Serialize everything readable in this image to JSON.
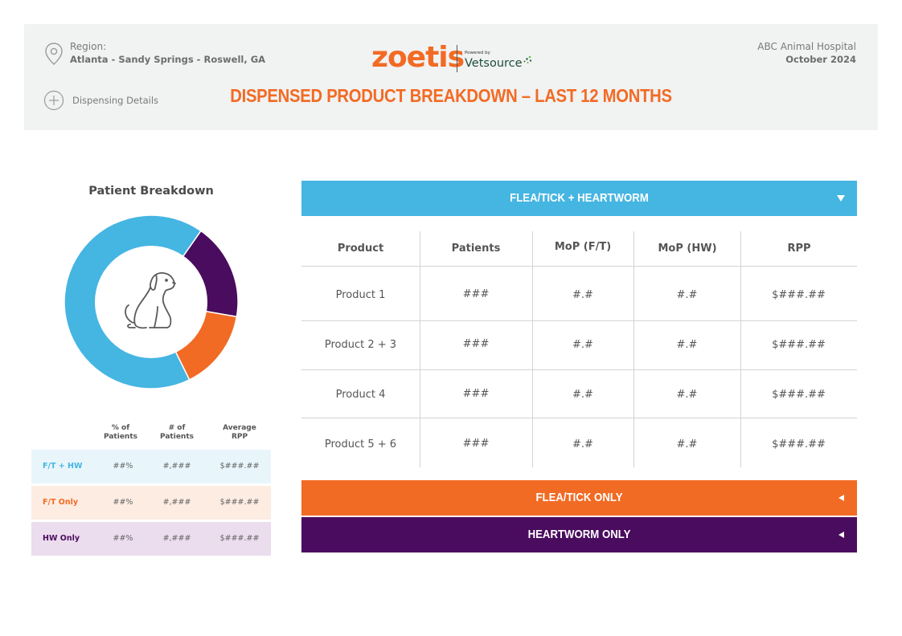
{
  "header": {
    "region_label": "Region:",
    "region_value": "Atlanta - Sandy Springs - Roswell, GA",
    "details_link": "Dispensing Details",
    "logo_brand": "zoetis",
    "logo_powered": "Powered by",
    "logo_partner": "Vetsource",
    "title": "DISPENSED PRODUCT BREAKDOWN – LAST 12 MONTHS",
    "clinic": "ABC Animal Hospital",
    "month": "October 2024"
  },
  "icons": {
    "region": "location-pin-icon",
    "details": "plus-circle-icon",
    "donut_center": "dog-icon",
    "expanded": "triangle-down-icon",
    "collapsed": "triangle-left-icon"
  },
  "colors": {
    "blue": "#45b5e2",
    "orange": "#f26b24",
    "purple": "#4a0c5e"
  },
  "patient_breakdown": {
    "title": "Patient Breakdown",
    "headers": [
      "% of\nPatients",
      "# of\nPatients",
      "Average\nRPP"
    ],
    "rows": [
      {
        "label": "F/T + HW",
        "pct": "##%",
        "count": "#,###",
        "rpp": "$###.##",
        "color": "#45b5e2",
        "bg": "#e8f6fc"
      },
      {
        "label": "F/T Only",
        "pct": "##%",
        "count": "#,###",
        "rpp": "$###.##",
        "color": "#f26b24",
        "bg": "#fdece2"
      },
      {
        "label": "HW Only",
        "pct": "##%",
        "count": "#,###",
        "rpp": "$###.##",
        "color": "#4a0c5e",
        "bg": "#ebdcee"
      }
    ]
  },
  "chart_data": {
    "type": "pie",
    "title": "Patient Breakdown",
    "categories": [
      "F/T + HW",
      "HW Only",
      "F/T Only"
    ],
    "values": [
      67,
      18,
      15
    ],
    "colors": [
      "#45b5e2",
      "#4a0c5e",
      "#f26b24"
    ],
    "donut": true
  },
  "sections": [
    {
      "label": "FLEA/TICK + HEARTWORM",
      "color": "#45b5e2",
      "expanded": true
    },
    {
      "label": "FLEA/TICK ONLY",
      "color": "#f26b24",
      "expanded": false
    },
    {
      "label": "HEARTWORM ONLY",
      "color": "#4a0c5e",
      "expanded": false
    }
  ],
  "product_table": {
    "headers": [
      "Product",
      "Patients",
      "MoP (F/T)",
      "MoP (HW)",
      "RPP"
    ],
    "rows": [
      [
        "Product 1",
        "###",
        "#.#",
        "#.#",
        "$###.##"
      ],
      [
        "Product 2 + 3",
        "###",
        "#.#",
        "#.#",
        "$###.##"
      ],
      [
        "Product 4",
        "###",
        "#.#",
        "#.#",
        "$###.##"
      ],
      [
        "Product 5 + 6",
        "###",
        "#.#",
        "#.#",
        "$###.##"
      ]
    ]
  }
}
